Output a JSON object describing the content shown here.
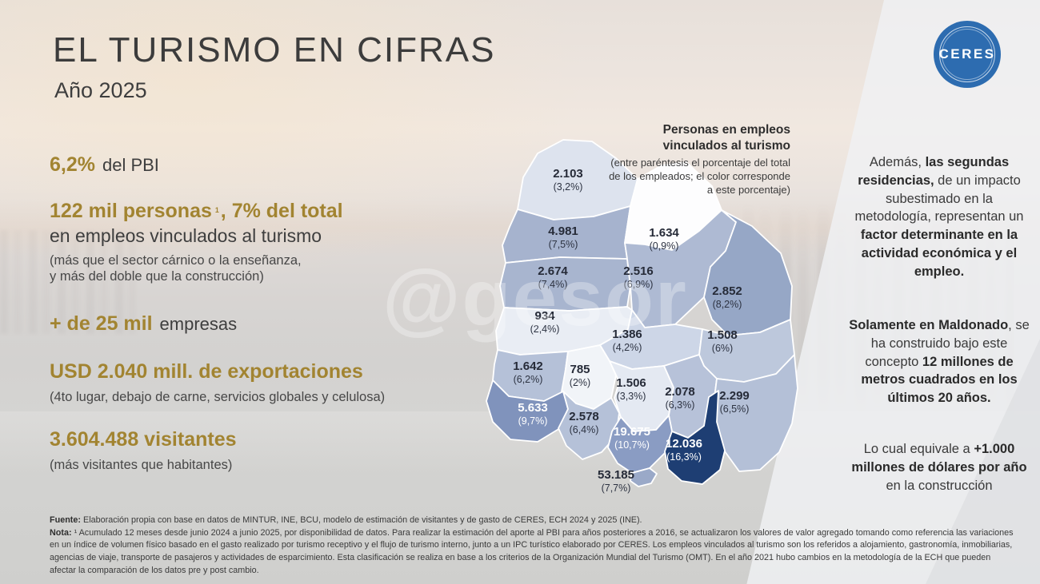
{
  "slide": {
    "title": "EL TURISMO EN CIFRAS",
    "subtitle": "Año 2025"
  },
  "logo": {
    "text": "CERES",
    "bg_color": "#2d6cb0"
  },
  "watermark": "@gesor",
  "stats": {
    "pbi": {
      "value": "6,2%",
      "label": "del PBI"
    },
    "empleo": {
      "part1": "122 mil personas",
      "sup": "1",
      "part2": ", 7% del total",
      "line2": "en empleos vinculados al turismo",
      "note": "(más que el sector cárnico o la enseñanza,\ny más del doble que la construcción)"
    },
    "empresas": {
      "value": "+ de 25 mil",
      "label": "empresas"
    },
    "exportaciones": {
      "value": "USD 2.040 mill. de exportaciones",
      "note": "(4to lugar, debajo de carne, servicios globales y celulosa)"
    },
    "visitantes": {
      "value": "3.604.488 visitantes",
      "note": "(más visitantes que habitantes)"
    }
  },
  "map_header": {
    "title": "Personas en empleos vinculados al turismo",
    "subtitle": "(entre paréntesis el porcentaje del total de los empleados; el color corresponde a este porcentaje)"
  },
  "map": {
    "departments": [
      {
        "id": "artigas",
        "name": "Artigas",
        "value": "2.103",
        "pct": "(3,2%)",
        "fill": "#dde3ee",
        "text_color": "dark"
      },
      {
        "id": "salto",
        "name": "Salto",
        "value": "4.981",
        "pct": "(7,5%)",
        "fill": "#a6b3ce",
        "text_color": "dark"
      },
      {
        "id": "rivera",
        "name": "Rivera",
        "value": "1.634",
        "pct": "(0,9%)",
        "fill": "#fdfdfe",
        "text_color": "dark"
      },
      {
        "id": "paysandu",
        "name": "Paysandú",
        "value": "2.674",
        "pct": "(7,4%)",
        "fill": "#a8b5cf",
        "text_color": "dark"
      },
      {
        "id": "tacuarembo",
        "name": "Tacuarembó",
        "value": "2.516",
        "pct": "(6,9%)",
        "fill": "#aebad3",
        "text_color": "dark"
      },
      {
        "id": "cerro-largo",
        "name": "Cerro Largo",
        "value": "2.852",
        "pct": "(8,2%)",
        "fill": "#96a7c6",
        "text_color": "dark"
      },
      {
        "id": "rio-negro",
        "name": "Río Negro",
        "value": "934",
        "pct": "(2,4%)",
        "fill": "#e9edf4",
        "text_color": "dark"
      },
      {
        "id": "durazno",
        "name": "Durazno",
        "value": "1.386",
        "pct": "(4,2%)",
        "fill": "#cdd6e7",
        "text_color": "dark"
      },
      {
        "id": "treinta-y-tres",
        "name": "Treinta y Tres",
        "value": "1.508",
        "pct": "(6%)",
        "fill": "#bdc8dc",
        "text_color": "dark"
      },
      {
        "id": "soriano",
        "name": "Soriano",
        "value": "1.642",
        "pct": "(6,2%)",
        "fill": "#b5c1d8",
        "text_color": "dark"
      },
      {
        "id": "flores",
        "name": "Flores",
        "value": "785",
        "pct": "(2%)",
        "fill": "#f1f4f8",
        "text_color": "dark"
      },
      {
        "id": "florida",
        "name": "Florida",
        "value": "1.506",
        "pct": "(3,3%)",
        "fill": "#e4e9f2",
        "text_color": "dark"
      },
      {
        "id": "lavalleja",
        "name": "Lavalleja",
        "value": "2.078",
        "pct": "(6,3%)",
        "fill": "#b7c2d9",
        "text_color": "dark"
      },
      {
        "id": "rocha",
        "name": "Rocha",
        "value": "2.299",
        "pct": "(6,5%)",
        "fill": "#b4c0d7",
        "text_color": "dark"
      },
      {
        "id": "colonia",
        "name": "Colonia",
        "value": "5.633",
        "pct": "(9,7%)",
        "fill": "#8093bc",
        "text_color": "white"
      },
      {
        "id": "san-jose",
        "name": "San José",
        "value": "2.578",
        "pct": "(6,4%)",
        "fill": "#b5c1d8",
        "text_color": "dark"
      },
      {
        "id": "canelones",
        "name": "Canelones",
        "value": "19.675",
        "pct": "(10,7%)",
        "fill": "#8a9cc3",
        "text_color": "white"
      },
      {
        "id": "maldonado",
        "name": "Maldonado",
        "value": "12.036",
        "pct": "(16,3%)",
        "fill": "#1e3e73",
        "text_color": "white"
      },
      {
        "id": "montevideo",
        "name": "Montevideo",
        "value": "53.185",
        "pct": "(7,7%)",
        "fill": "#9aa9c8",
        "text_color": "dark"
      }
    ]
  },
  "right_column": {
    "p1": {
      "t1": "Además, ",
      "b1": "las segundas residencias,",
      "t2": " de un impacto subestimado en la metodología, representan un ",
      "b2": "factor determinante en la actividad económica y el empleo."
    },
    "p2": {
      "b1": "Solamente en Maldonado",
      "t1": ", se ha construido bajo este concepto ",
      "b2": "12 millones de metros cuadrados en los últimos 20 años."
    },
    "p3": {
      "t1": "Lo cual equivale a ",
      "b1": "+1.000 millones de dólares por año",
      "t2": " en la construcción"
    }
  },
  "footer": {
    "fuente_label": "Fuente:",
    "fuente_text": " Elaboración propia con base en datos de MINTUR, INE, BCU, modelo de estimación de visitantes y de gasto de CERES, ECH 2024 y 2025 (INE).",
    "nota_label": "Nota:",
    "nota_text": " ¹ Acumulado 12 meses desde junio 2024 a junio 2025, por disponibilidad de datos. Para realizar la estimación del aporte al PBI para años posteriores a 2016, se actualizaron los valores de valor agregado tomando como referencia las variaciones en un índice de volumen físico basado en el gasto realizado por turismo receptivo y el flujo de turismo interno, junto a un IPC turístico elaborado por CERES. Los empleos vinculados al turismo son los referidos a alojamiento, gastronomía, inmobiliarias, agencias de viaje, transporte de pasajeros y actividades de esparcimiento. Esta clasificación se realiza en base a los criterios de la Organización Mundial del Turismo (OMT). En el año 2021 hubo cambios en la metodología de la ECH que pueden afectar la comparación de los datos pre y post cambio."
  },
  "chart_data": {
    "type": "heatmap",
    "subtype": "choropleth_map",
    "region": "Uruguay (19 departamentos)",
    "title": "Personas en empleos vinculados al turismo",
    "note": "entre paréntesis el porcentaje del total de los empleados; el color corresponde a este porcentaje",
    "legend_position": "top-right",
    "color_scale": {
      "low": "#ffffff",
      "high": "#1e3e73"
    },
    "regions": [
      {
        "department": "Artigas",
        "empleos": 2103,
        "pct_empleados": 3.2
      },
      {
        "department": "Salto",
        "empleos": 4981,
        "pct_empleados": 7.5
      },
      {
        "department": "Rivera",
        "empleos": 1634,
        "pct_empleados": 0.9
      },
      {
        "department": "Paysandú",
        "empleos": 2674,
        "pct_empleados": 7.4
      },
      {
        "department": "Tacuarembó",
        "empleos": 2516,
        "pct_empleados": 6.9
      },
      {
        "department": "Cerro Largo",
        "empleos": 2852,
        "pct_empleados": 8.2
      },
      {
        "department": "Río Negro",
        "empleos": 934,
        "pct_empleados": 2.4
      },
      {
        "department": "Durazno",
        "empleos": 1386,
        "pct_empleados": 4.2
      },
      {
        "department": "Treinta y Tres",
        "empleos": 1508,
        "pct_empleados": 6.0
      },
      {
        "department": "Soriano",
        "empleos": 1642,
        "pct_empleados": 6.2
      },
      {
        "department": "Flores",
        "empleos": 785,
        "pct_empleados": 2.0
      },
      {
        "department": "Florida",
        "empleos": 1506,
        "pct_empleados": 3.3
      },
      {
        "department": "Lavalleja",
        "empleos": 2078,
        "pct_empleados": 6.3
      },
      {
        "department": "Rocha",
        "empleos": 2299,
        "pct_empleados": 6.5
      },
      {
        "department": "Colonia",
        "empleos": 5633,
        "pct_empleados": 9.7
      },
      {
        "department": "San José",
        "empleos": 2578,
        "pct_empleados": 6.4
      },
      {
        "department": "Canelones",
        "empleos": 19675,
        "pct_empleados": 10.7
      },
      {
        "department": "Maldonado",
        "empleos": 12036,
        "pct_empleados": 16.3
      },
      {
        "department": "Montevideo",
        "empleos": 53185,
        "pct_empleados": 7.7
      }
    ],
    "kpis": [
      {
        "label": "del PBI",
        "value": "6,2%"
      },
      {
        "label": "personas en empleos vinculados al turismo",
        "value": "122 mil (7% del total)"
      },
      {
        "label": "empresas",
        "value": "+ de 25 mil"
      },
      {
        "label": "exportaciones",
        "value": "USD 2.040 mill."
      },
      {
        "label": "visitantes",
        "value": "3.604.488"
      }
    ]
  }
}
